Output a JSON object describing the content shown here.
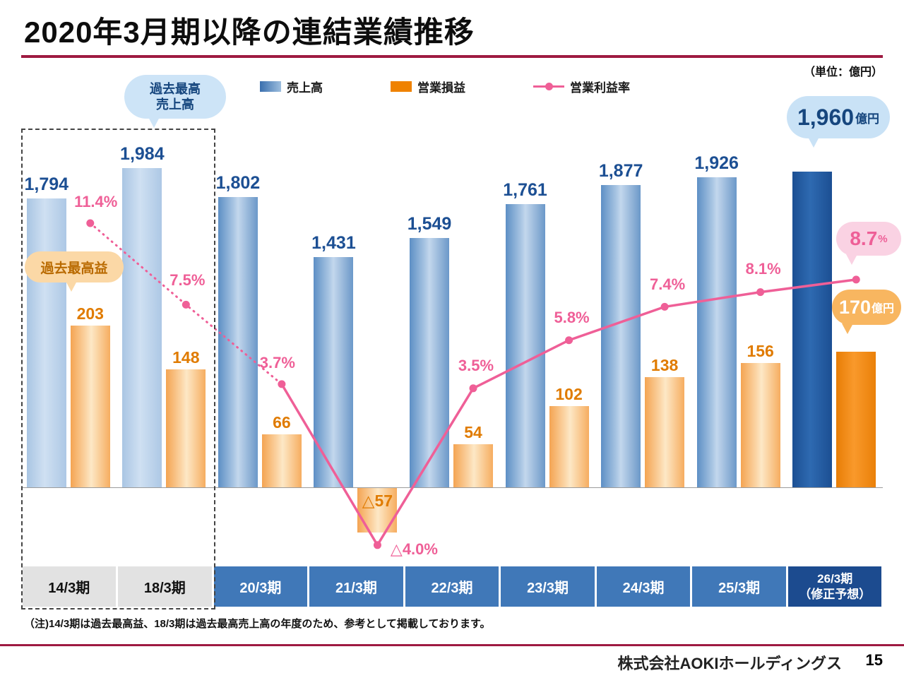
{
  "slide": {
    "title": "2020年3月期以降の連結業績推移",
    "unit_note": "（単位：億円）",
    "footnote": "（注)14/3期は過去最高益、18/3期は過去最高売上高の年度のため、参考として掲載しております。",
    "footer": {
      "company": "株式会社AOKIホールディングス",
      "page_number": "15"
    }
  },
  "legend": {
    "sales_label": "売上高",
    "profit_label": "営業損益",
    "margin_label": "営業利益率"
  },
  "callouts": {
    "record_sales_line1": "過去最高",
    "record_sales_line2": "売上高",
    "record_profit": "過去最高益",
    "sales_forecast_value": "1,960",
    "sales_forecast_unit": "億円",
    "margin_forecast_value": "8.7",
    "margin_forecast_unit": "%",
    "profit_forecast_value": "170",
    "profit_forecast_unit": "億円"
  },
  "colors": {
    "accent_red": "#9e1a41",
    "sales_ref_blue": "#b9cfe9",
    "sales_bar_blue": "#6b98c9",
    "sales_forecast_blue": "#1c4f93",
    "profit_bar_orange": "#f6ad60",
    "profit_forecast_orange": "#ef8200",
    "margin_line_pink": "#ef5f97",
    "axis_band_blue": "#4078b8",
    "axis_band_dark": "#1c4b8f",
    "axis_band_gray": "#e2e2e2"
  },
  "chart_data": {
    "type": "bar+line combo",
    "unit": "億円",
    "categories": [
      "14/3期",
      "18/3期",
      "20/3期",
      "21/3期",
      "22/3期",
      "23/3期",
      "24/3期",
      "25/3期",
      "26/3期\n（修正予想）"
    ],
    "series": [
      {
        "name": "売上高",
        "type": "bar",
        "unit": "億円",
        "values": [
          1794,
          1984,
          1802,
          1431,
          1549,
          1761,
          1877,
          1926,
          1960
        ],
        "labels": [
          "1,794",
          "1,984",
          "1,802",
          "1,431",
          "1,549",
          "1,761",
          "1,877",
          "1,926",
          "1,960"
        ]
      },
      {
        "name": "営業損益",
        "type": "bar",
        "unit": "億円",
        "values": [
          203,
          148,
          66,
          -57,
          54,
          102,
          138,
          156,
          170
        ],
        "labels": [
          "203",
          "148",
          "66",
          "△57",
          "54",
          "102",
          "138",
          "156",
          "170"
        ]
      },
      {
        "name": "営業利益率",
        "type": "line",
        "unit": "%",
        "values": [
          11.4,
          7.5,
          3.7,
          -4.0,
          3.5,
          5.8,
          7.4,
          8.1,
          8.7
        ],
        "labels": [
          "11.4%",
          "7.5%",
          "3.7%",
          "△4.0%",
          "3.5%",
          "5.8%",
          "7.4%",
          "8.1%",
          "8.7%"
        ]
      }
    ],
    "reference_periods": [
      "14/3期",
      "18/3期"
    ],
    "forecast_period": "26/3期（修正予想）"
  }
}
